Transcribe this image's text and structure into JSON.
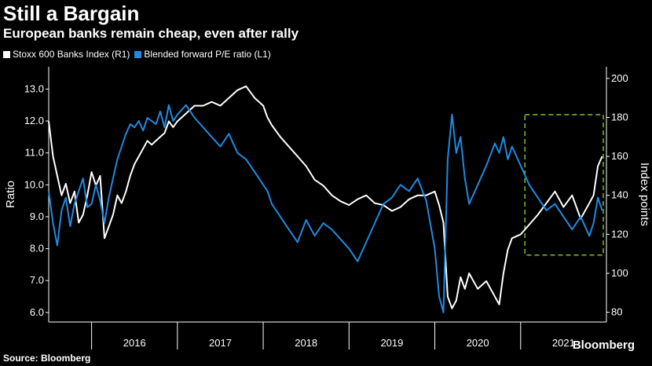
{
  "header": {
    "title": "Still a Bargain",
    "subtitle": "European banks remain cheap, even after rally"
  },
  "legend": [
    {
      "label": "Stoxx 600 Banks Index (R1)",
      "color": "#ffffff"
    },
    {
      "label": "Blended forward P/E ratio (L1)",
      "color": "#1f8ae0"
    }
  ],
  "footer": {
    "source": "Source: Bloomberg",
    "brand": "Bloomberg"
  },
  "chart_data": {
    "type": "line",
    "title": "Still a Bargain",
    "subtitle": "European banks remain cheap, even after rally",
    "ylabel_left": "Ratio",
    "ylabel_right": "Index points",
    "ylim_left": [
      5.7,
      13.7
    ],
    "ylim_right": [
      75,
      206
    ],
    "yticks_left": [
      "6.0",
      "7.0",
      "8.0",
      "9.0",
      "10.0",
      "11.0",
      "12.0",
      "13.0"
    ],
    "yticks_right": [
      "80",
      "100",
      "120",
      "140",
      "160",
      "180",
      "200"
    ],
    "xlim": [
      2015.5,
      2022.0
    ],
    "xticks": [
      "2016",
      "2017",
      "2018",
      "2019",
      "2020",
      "2021"
    ],
    "grid": false,
    "highlight_box": {
      "x": [
        2021.05,
        2022.0
      ],
      "y_left": [
        7.8,
        12.2
      ],
      "color": "#7fbf2a",
      "style": "dashed"
    },
    "series": [
      {
        "name": "Stoxx 600 Banks Index (R1)",
        "axis": "right",
        "color": "#ffffff",
        "x": [
          2015.5,
          2015.55,
          2015.6,
          2015.65,
          2015.7,
          2015.75,
          2015.8,
          2015.85,
          2015.9,
          2015.95,
          2016.0,
          2016.05,
          2016.1,
          2016.15,
          2016.2,
          2016.25,
          2016.3,
          2016.35,
          2016.4,
          2016.45,
          2016.5,
          2016.55,
          2016.6,
          2016.65,
          2016.7,
          2016.75,
          2016.8,
          2016.85,
          2016.9,
          2016.95,
          2017.0,
          2017.1,
          2017.2,
          2017.3,
          2017.4,
          2017.5,
          2017.6,
          2017.7,
          2017.8,
          2017.9,
          2018.0,
          2018.05,
          2018.1,
          2018.2,
          2018.3,
          2018.4,
          2018.5,
          2018.6,
          2018.7,
          2018.8,
          2018.9,
          2019.0,
          2019.1,
          2019.2,
          2019.3,
          2019.4,
          2019.5,
          2019.6,
          2019.7,
          2019.8,
          2019.9,
          2020.0,
          2020.05,
          2020.1,
          2020.15,
          2020.2,
          2020.25,
          2020.3,
          2020.35,
          2020.4,
          2020.5,
          2020.6,
          2020.7,
          2020.75,
          2020.8,
          2020.85,
          2020.9,
          2021.0,
          2021.1,
          2021.2,
          2021.3,
          2021.4,
          2021.5,
          2021.6,
          2021.7,
          2021.8,
          2021.85,
          2021.9,
          2021.95
        ],
        "values": [
          178,
          160,
          150,
          140,
          146,
          136,
          142,
          126,
          130,
          140,
          152,
          145,
          150,
          118,
          124,
          130,
          140,
          136,
          142,
          150,
          156,
          160,
          164,
          168,
          166,
          168,
          170,
          172,
          178,
          175,
          178,
          182,
          186,
          186,
          188,
          186,
          190,
          194,
          196,
          190,
          186,
          180,
          176,
          170,
          165,
          160,
          155,
          148,
          145,
          140,
          137,
          135,
          138,
          140,
          136,
          135,
          132,
          134,
          138,
          140,
          140,
          142,
          135,
          126,
          88,
          82,
          86,
          98,
          92,
          100,
          92,
          96,
          88,
          84,
          100,
          112,
          118,
          120,
          125,
          130,
          136,
          142,
          134,
          140,
          128,
          136,
          140,
          155,
          160
        ]
      },
      {
        "name": "Blended forward P/E ratio (L1)",
        "axis": "left",
        "color": "#1f8ae0",
        "x": [
          2015.5,
          2015.55,
          2015.6,
          2015.65,
          2015.7,
          2015.75,
          2015.8,
          2015.85,
          2015.9,
          2015.95,
          2016.0,
          2016.05,
          2016.1,
          2016.15,
          2016.2,
          2016.25,
          2016.3,
          2016.35,
          2016.4,
          2016.45,
          2016.5,
          2016.55,
          2016.6,
          2016.65,
          2016.7,
          2016.75,
          2016.8,
          2016.85,
          2016.9,
          2016.95,
          2017.0,
          2017.1,
          2017.2,
          2017.3,
          2017.4,
          2017.5,
          2017.6,
          2017.7,
          2017.8,
          2017.9,
          2018.0,
          2018.05,
          2018.1,
          2018.2,
          2018.3,
          2018.4,
          2018.5,
          2018.6,
          2018.7,
          2018.8,
          2018.9,
          2019.0,
          2019.1,
          2019.2,
          2019.3,
          2019.4,
          2019.5,
          2019.6,
          2019.7,
          2019.8,
          2019.9,
          2020.0,
          2020.05,
          2020.1,
          2020.15,
          2020.2,
          2020.25,
          2020.3,
          2020.35,
          2020.4,
          2020.5,
          2020.6,
          2020.7,
          2020.75,
          2020.8,
          2020.85,
          2020.9,
          2021.0,
          2021.1,
          2021.2,
          2021.3,
          2021.4,
          2021.5,
          2021.6,
          2021.7,
          2021.8,
          2021.85,
          2021.9,
          2021.95
        ],
        "values": [
          9.8,
          8.8,
          8.1,
          9.2,
          9.6,
          8.7,
          9.4,
          9.8,
          10.2,
          9.3,
          9.4,
          10.0,
          9.5,
          8.8,
          9.6,
          10.2,
          10.8,
          11.2,
          11.6,
          11.9,
          11.8,
          12.0,
          11.7,
          12.1,
          12.0,
          11.9,
          12.3,
          11.8,
          12.5,
          12.0,
          12.2,
          12.5,
          12.1,
          11.8,
          11.5,
          11.2,
          11.6,
          11.0,
          10.8,
          10.4,
          10.0,
          9.8,
          9.4,
          9.0,
          8.6,
          8.2,
          8.9,
          8.4,
          8.8,
          8.6,
          8.3,
          8.0,
          7.6,
          8.2,
          8.8,
          9.4,
          9.6,
          10.0,
          9.8,
          10.2,
          9.5,
          8.0,
          6.5,
          6.0,
          10.8,
          12.2,
          11.0,
          11.5,
          10.2,
          9.4,
          10.0,
          10.6,
          11.3,
          11.0,
          11.5,
          10.8,
          11.2,
          10.6,
          10.0,
          9.6,
          9.2,
          9.4,
          9.0,
          8.6,
          9.0,
          8.4,
          8.8,
          9.6,
          9.2
        ]
      }
    ]
  }
}
